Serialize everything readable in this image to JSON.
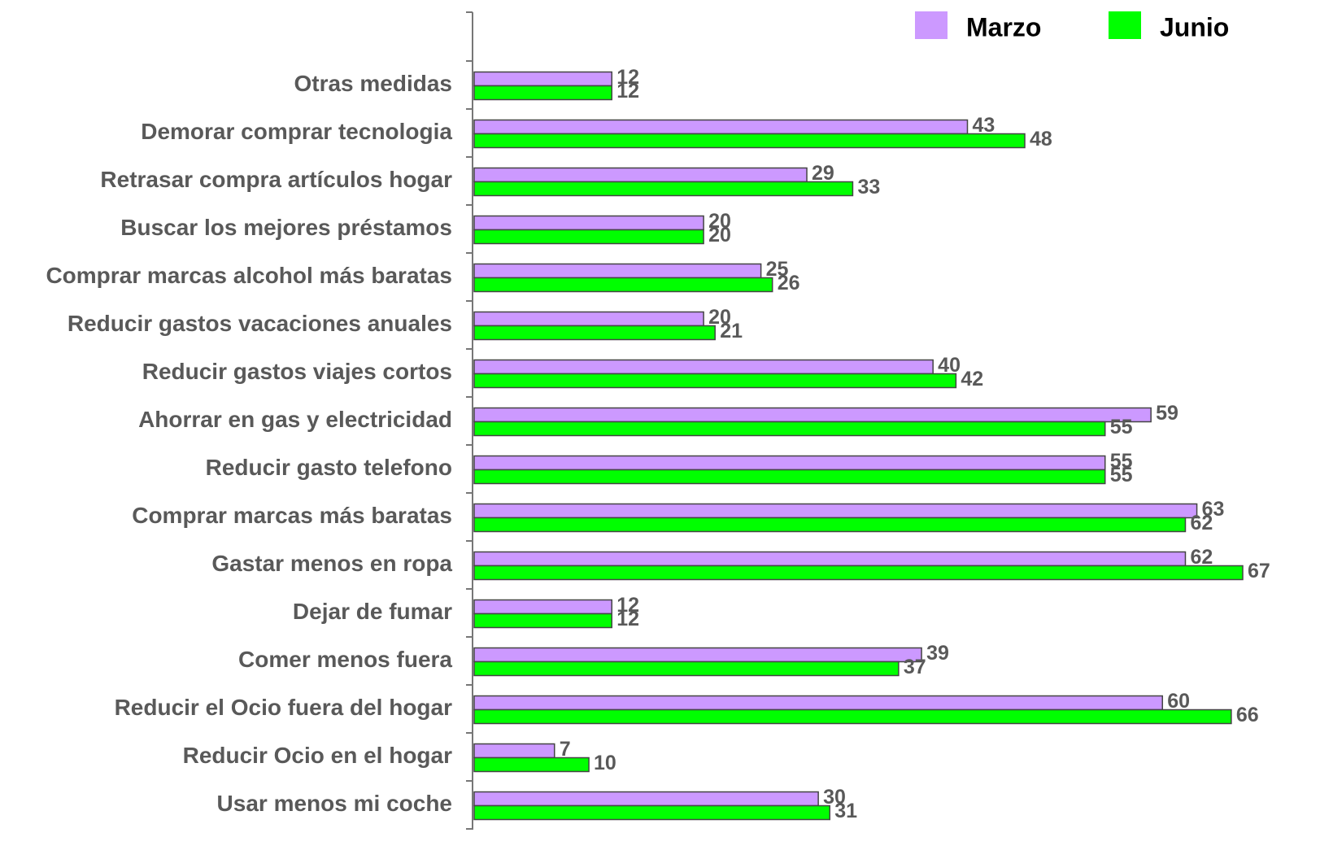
{
  "chart_data": {
    "type": "hbar",
    "categories": [
      "Otras medidas",
      "Demorar comprar tecnologia",
      "Retrasar compra artículos hogar",
      "Buscar los mejores préstamos",
      "Comprar marcas alcohol más baratas",
      "Reducir gastos vacaciones anuales",
      "Reducir gastos viajes cortos",
      "Ahorrar en gas y electricidad",
      "Reducir gasto telefono",
      "Comprar marcas más baratas",
      "Gastar menos en ropa",
      "Dejar de fumar",
      "Comer menos fuera",
      "Reducir el Ocio fuera del hogar",
      "Reducir Ocio en el hogar",
      "Usar menos mi coche"
    ],
    "series": [
      {
        "name": "Marzo",
        "color": "#cc99ff",
        "values": [
          12,
          43,
          29,
          20,
          25,
          20,
          40,
          59,
          55,
          63,
          62,
          12,
          39,
          60,
          7,
          30
        ]
      },
      {
        "name": "Junio",
        "color": "#00ff00",
        "values": [
          12,
          48,
          33,
          20,
          26,
          21,
          42,
          55,
          55,
          62,
          67,
          12,
          37,
          66,
          10,
          31
        ]
      }
    ],
    "xlim": [
      0,
      67
    ],
    "legend": "top-right"
  }
}
